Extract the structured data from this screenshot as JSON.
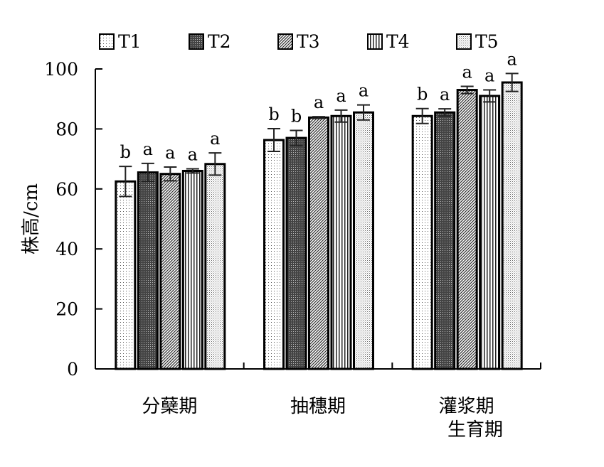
{
  "chart_data": {
    "type": "bar",
    "title": "",
    "xlabel": "生育期",
    "ylabel": "株高/cm",
    "ylim": [
      0,
      100
    ],
    "yticks": [
      0,
      20,
      40,
      60,
      80,
      100
    ],
    "grid": false,
    "legend": "top",
    "categories": [
      "分蘖期",
      "抽穗期",
      "灌浆期"
    ],
    "series": [
      {
        "name": "T1",
        "pattern": "dots",
        "values": [
          62.5,
          76.3,
          84.3
        ],
        "errors": [
          5.0,
          3.8,
          2.5
        ],
        "letters": [
          "b",
          "b",
          "b"
        ]
      },
      {
        "name": "T2",
        "pattern": "dense",
        "values": [
          65.5,
          77.0,
          85.5
        ],
        "errors": [
          3.0,
          2.5,
          1.2
        ],
        "letters": [
          "a",
          "b",
          "a"
        ]
      },
      {
        "name": "T3",
        "pattern": "diag",
        "values": [
          65.0,
          83.8,
          93.0
        ],
        "errors": [
          2.3,
          0.3,
          1.2
        ],
        "letters": [
          "a",
          "a",
          "a"
        ]
      },
      {
        "name": "T4",
        "pattern": "vertical",
        "values": [
          66.0,
          84.3,
          91.0
        ],
        "errors": [
          0.7,
          2.0,
          2.0
        ],
        "letters": [
          "a",
          "a",
          "a"
        ]
      },
      {
        "name": "T5",
        "pattern": "fine",
        "values": [
          68.3,
          85.5,
          95.5
        ],
        "errors": [
          3.7,
          2.5,
          3.0
        ],
        "letters": [
          "a",
          "a",
          "a"
        ]
      }
    ]
  }
}
